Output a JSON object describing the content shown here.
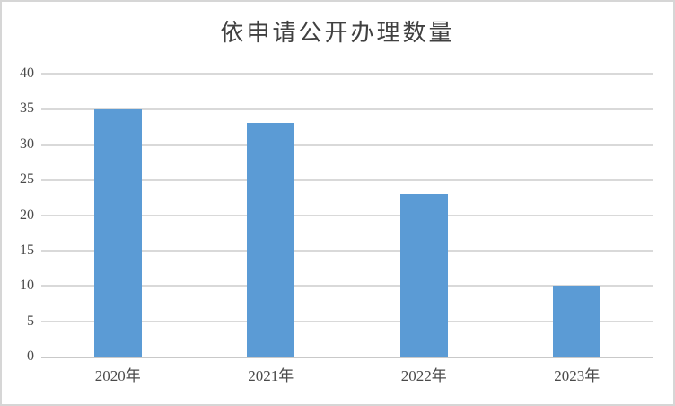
{
  "chart_data": {
    "type": "bar",
    "title": "依申请公开办理数量",
    "categories": [
      "2020年",
      "2021年",
      "2022年",
      "2023年"
    ],
    "values": [
      35,
      33,
      23,
      10
    ],
    "xlabel": "",
    "ylabel": "",
    "ylim": [
      0,
      40
    ],
    "ytick_step": 5,
    "yticks": [
      40,
      35,
      30,
      25,
      20,
      15,
      10,
      5,
      0
    ],
    "grid": true,
    "legend": false,
    "colors": {
      "bar": "#5b9bd5",
      "gridline": "#d9d9d9",
      "axis_line": "#c9c9c9",
      "tick_label_text": "#4a4a4a",
      "title_text": "#404040",
      "chart_border": "#d6d6d6",
      "background": "#ffffff"
    }
  }
}
